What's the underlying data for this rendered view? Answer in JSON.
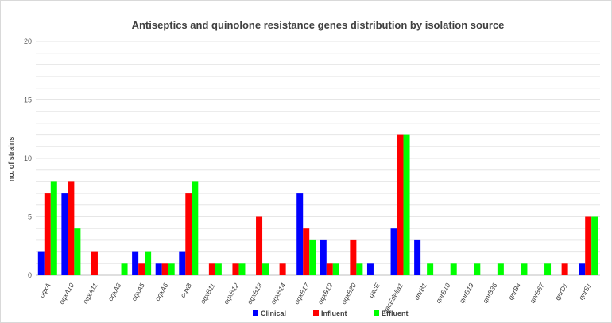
{
  "chart_data": {
    "type": "bar",
    "title": "Antiseptics and quinolone resistance genes distribution by isolation source",
    "xlabel": "",
    "ylabel": "no. of strains",
    "ylim": [
      0,
      20
    ],
    "yticks": [
      0,
      5,
      10,
      15,
      20
    ],
    "grid": true,
    "legend_position": "bottom",
    "categories": [
      "oqxA",
      "oqxA10",
      "oqxA11",
      "oqxA3",
      "oqxA5",
      "oqxA6",
      "oqxB",
      "oqxB11",
      "oqxB12",
      "oqxB13",
      "oqxB14",
      "oqxB17",
      "oqxB19",
      "oqxB20",
      "qacE",
      "qacEdelta1",
      "qnrB1",
      "qnrB10",
      "qnrB19",
      "qnrB36",
      "qnrB4",
      "qnrB67",
      "qnrD1",
      "qnrS1"
    ],
    "series": [
      {
        "name": "Clinical",
        "color": "#0000ff",
        "values": [
          2,
          7,
          0,
          0,
          2,
          1,
          2,
          0,
          0,
          0,
          0,
          7,
          3,
          0,
          1,
          4,
          3,
          0,
          0,
          0,
          0,
          0,
          0,
          1
        ]
      },
      {
        "name": "Influent",
        "color": "#ff0000",
        "values": [
          7,
          8,
          2,
          0,
          1,
          1,
          7,
          1,
          1,
          5,
          1,
          4,
          1,
          3,
          0,
          12,
          0,
          0,
          0,
          0,
          0,
          0,
          1,
          5
        ]
      },
      {
        "name": "Effluent",
        "color": "#00ff00",
        "values": [
          8,
          4,
          0,
          1,
          2,
          1,
          8,
          1,
          1,
          1,
          0,
          3,
          1,
          1,
          0,
          12,
          1,
          1,
          1,
          1,
          1,
          1,
          0,
          5
        ]
      }
    ]
  }
}
